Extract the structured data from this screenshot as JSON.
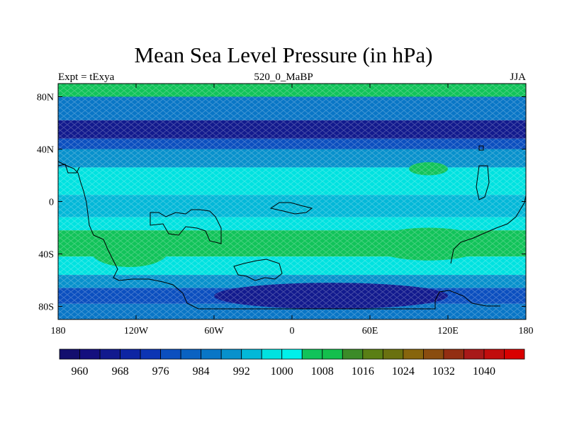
{
  "title": "Mean Sea Level Pressure (in hPa)",
  "left_string": "Expt = tExyа",
  "center_string": "520_0_MaBP",
  "right_string": "JJA",
  "x_ticks": [
    "180",
    "120W",
    "60W",
    "0",
    "60E",
    "120E",
    "180"
  ],
  "y_ticks": [
    "80N",
    "40N",
    "0",
    "40S",
    "80S"
  ],
  "x_tick_values": [
    -180,
    -120,
    -60,
    0,
    60,
    120,
    180
  ],
  "y_tick_values": [
    80,
    40,
    0,
    -40,
    -80
  ],
  "lon_range": [
    -180,
    180
  ],
  "lat_range": [
    -90,
    90
  ],
  "colorbar": {
    "labels": [
      "960",
      "968",
      "976",
      "984",
      "992",
      "1000",
      "1008",
      "1016",
      "1024",
      "1032",
      "1040"
    ],
    "label_levels": [
      960,
      968,
      976,
      984,
      992,
      1000,
      1008,
      1016,
      1024,
      1032,
      1040
    ],
    "levels": [
      956,
      960,
      964,
      968,
      972,
      976,
      980,
      984,
      988,
      992,
      996,
      1000,
      1004,
      1008,
      1012,
      1016,
      1020,
      1024,
      1028,
      1032,
      1036,
      1040,
      1044
    ],
    "colors": [
      "#130f6e",
      "#140f7e",
      "#121a8e",
      "#0d25a3",
      "#0c35b4",
      "#0b4fbf",
      "#0a62c2",
      "#0976c6",
      "#0891cc",
      "#03b8d8",
      "#00e2e0",
      "#00f0ea",
      "#11c35a",
      "#14bf4d",
      "#3c8b28",
      "#5a7f15",
      "#6a7110",
      "#87650d",
      "#8a4d0f",
      "#932e12",
      "#a81919",
      "#c10d0d",
      "#d90000"
    ]
  },
  "chart_data": {
    "type": "heatmap",
    "title": "Mean Sea Level Pressure (in hPa)",
    "subtitle_left": "Expt = tExyа",
    "subtitle_center": "520_0_MaBP",
    "subtitle_right": "JJA",
    "x_axis": "longitude",
    "y_axis": "latitude",
    "xlim": [
      -180,
      180
    ],
    "ylim": [
      -90,
      90
    ],
    "zonal_bands": [
      {
        "lat": [
          80,
          90
        ],
        "value": 1004
      },
      {
        "lat": [
          62,
          80
        ],
        "value": 984
      },
      {
        "lat": [
          48,
          62
        ],
        "value": 966
      },
      {
        "lat": [
          40,
          48
        ],
        "value": 976
      },
      {
        "lat": [
          26,
          40
        ],
        "value": 990
      },
      {
        "lat": [
          5,
          26
        ],
        "value": 998
      },
      {
        "lat": [
          -12,
          5
        ],
        "value": 994
      },
      {
        "lat": [
          -22,
          -12
        ],
        "value": 998
      },
      {
        "lat": [
          -42,
          -22
        ],
        "value": 1004
      },
      {
        "lat": [
          -56,
          -42
        ],
        "value": 998
      },
      {
        "lat": [
          -66,
          -56
        ],
        "value": 990
      },
      {
        "lat": [
          -78,
          -66
        ],
        "value": 976
      },
      {
        "lat": [
          -90,
          -78
        ],
        "value": 984
      }
    ],
    "features": [
      {
        "name": "subtropical high west",
        "lon": [
          -155,
          -95
        ],
        "lat": [
          -50,
          -25
        ],
        "value": 1006
      },
      {
        "name": "subtropical high east",
        "lon": [
          60,
          150
        ],
        "lat": [
          -45,
          -20
        ],
        "value": 1006
      },
      {
        "name": "northern high",
        "lon": [
          90,
          120
        ],
        "lat": [
          20,
          30
        ],
        "value": 1004
      },
      {
        "name": "southern low",
        "lon": [
          -60,
          120
        ],
        "lat": [
          -82,
          -62
        ],
        "value": 966
      }
    ]
  }
}
